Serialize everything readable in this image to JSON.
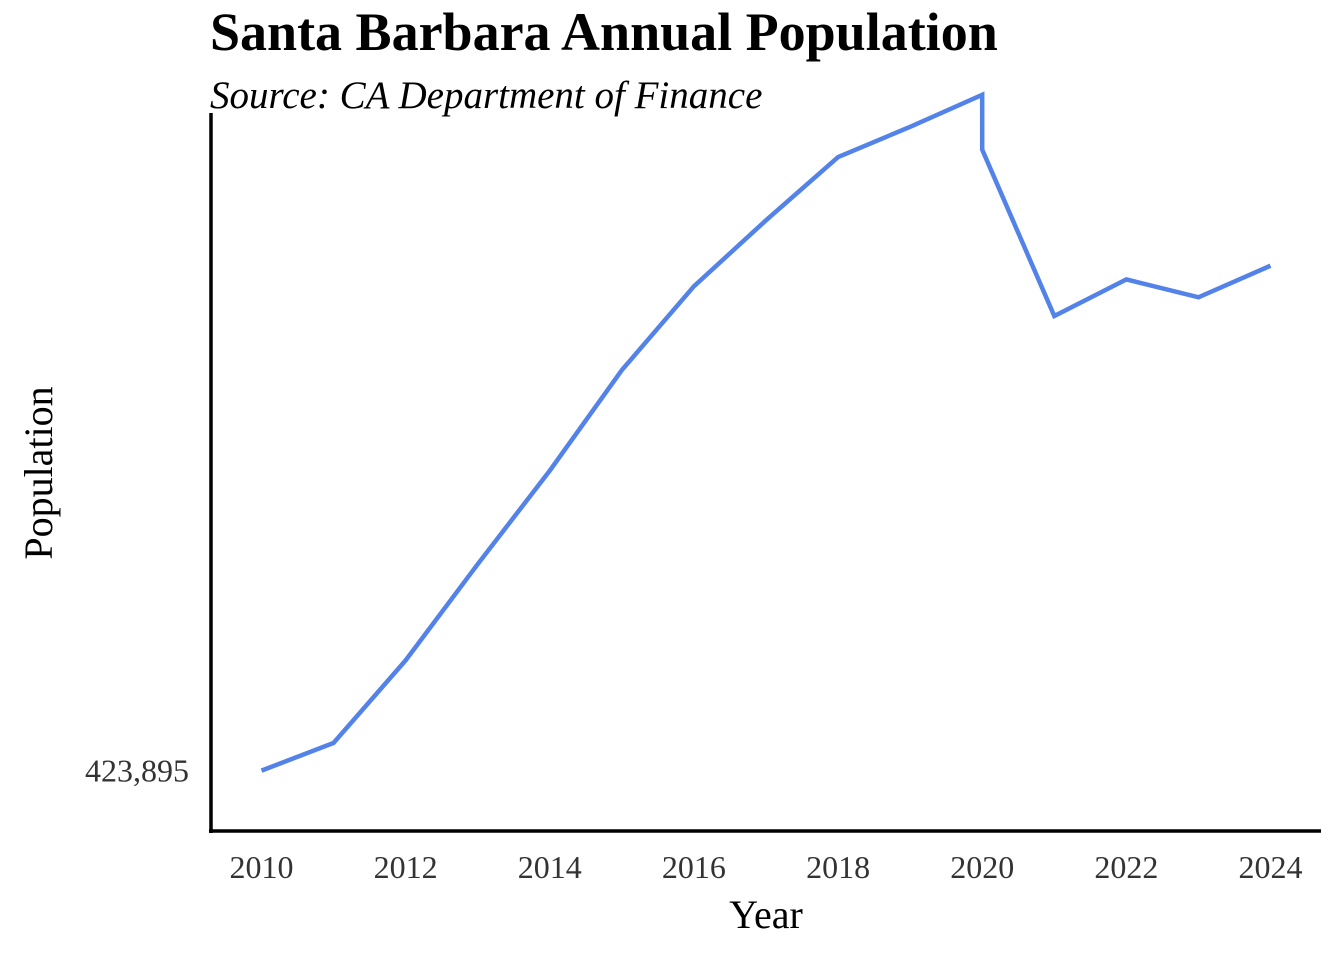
{
  "chart_data": {
    "type": "line",
    "title": "Santa Barbara Annual Population",
    "subtitle": "Source: CA Department of Finance",
    "xlabel": "Year",
    "ylabel": "Population",
    "x_ticks": [
      "2010",
      "2012",
      "2014",
      "2016",
      "2018",
      "2020",
      "2022",
      "2024"
    ],
    "y_ticks": [
      {
        "value": 423895,
        "label": "423,895"
      }
    ],
    "xlim": [
      2009.3,
      2024.7
    ],
    "ylim": [
      421700,
      447800
    ],
    "grid": false,
    "legend": "none",
    "series": [
      {
        "color": "#5383e8",
        "x": [
          2010,
          2011,
          2012,
          2013,
          2014,
          2015,
          2016,
          2017,
          2018,
          2019,
          2020,
          2020,
          2021,
          2022,
          2023,
          2024
        ],
        "y": [
          423895,
          424900,
          427900,
          431400,
          434800,
          438450,
          441500,
          443900,
          446200,
          447300,
          448460,
          446470,
          440420,
          441750,
          441100,
          442250
        ]
      }
    ]
  }
}
